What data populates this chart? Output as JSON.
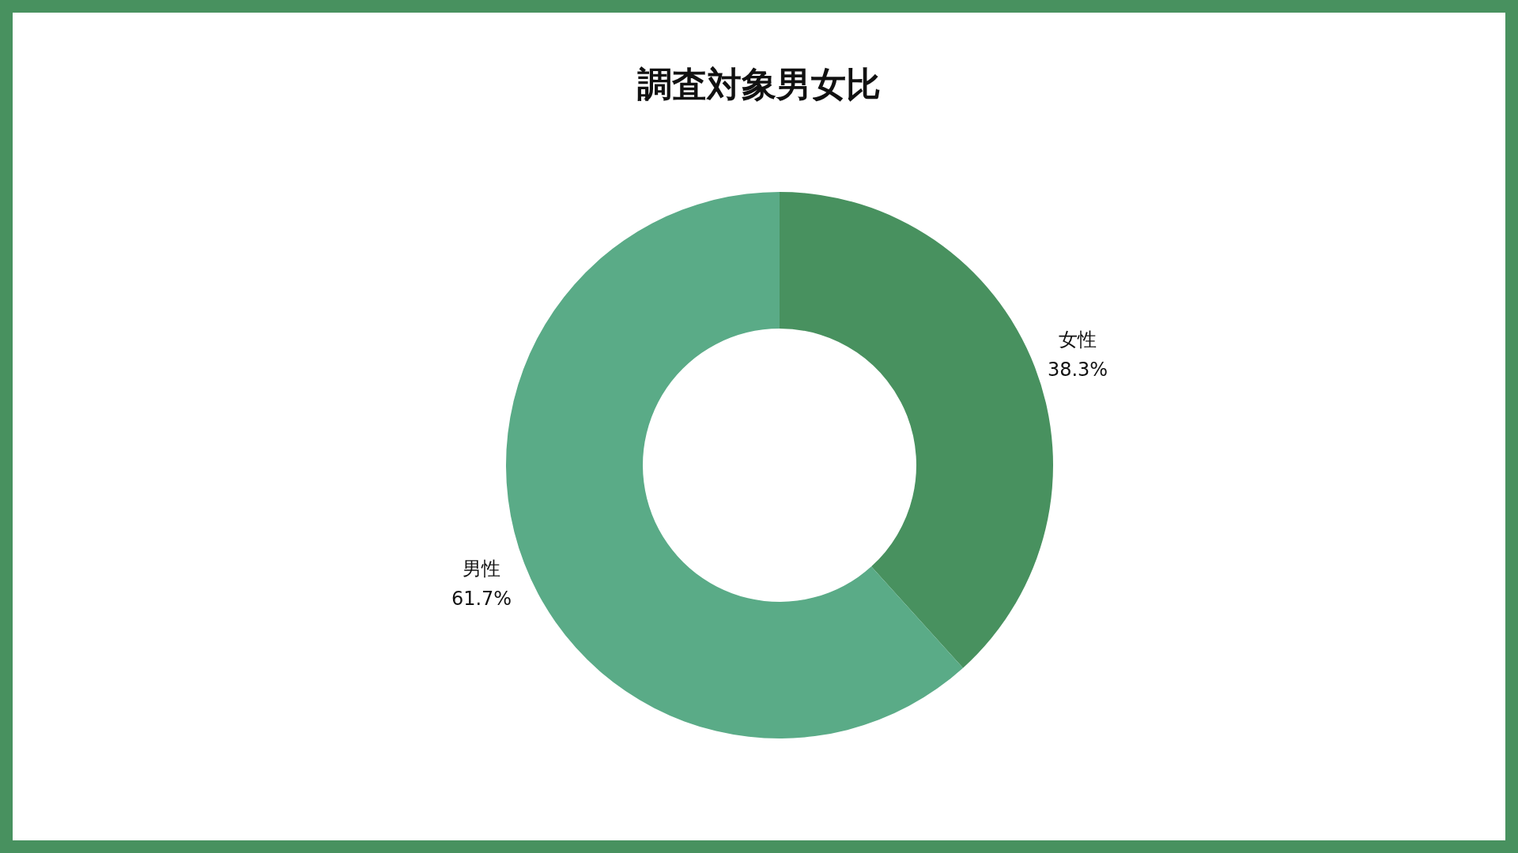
{
  "chart_data": {
    "type": "donut",
    "title": "調査対象男女比",
    "categories": [
      "女性",
      "男性"
    ],
    "values": [
      38.3,
      61.7
    ],
    "colors": [
      "#48915f",
      "#5aab87"
    ],
    "value_labels": [
      "38.3%",
      "61.7%"
    ],
    "legend": false
  }
}
